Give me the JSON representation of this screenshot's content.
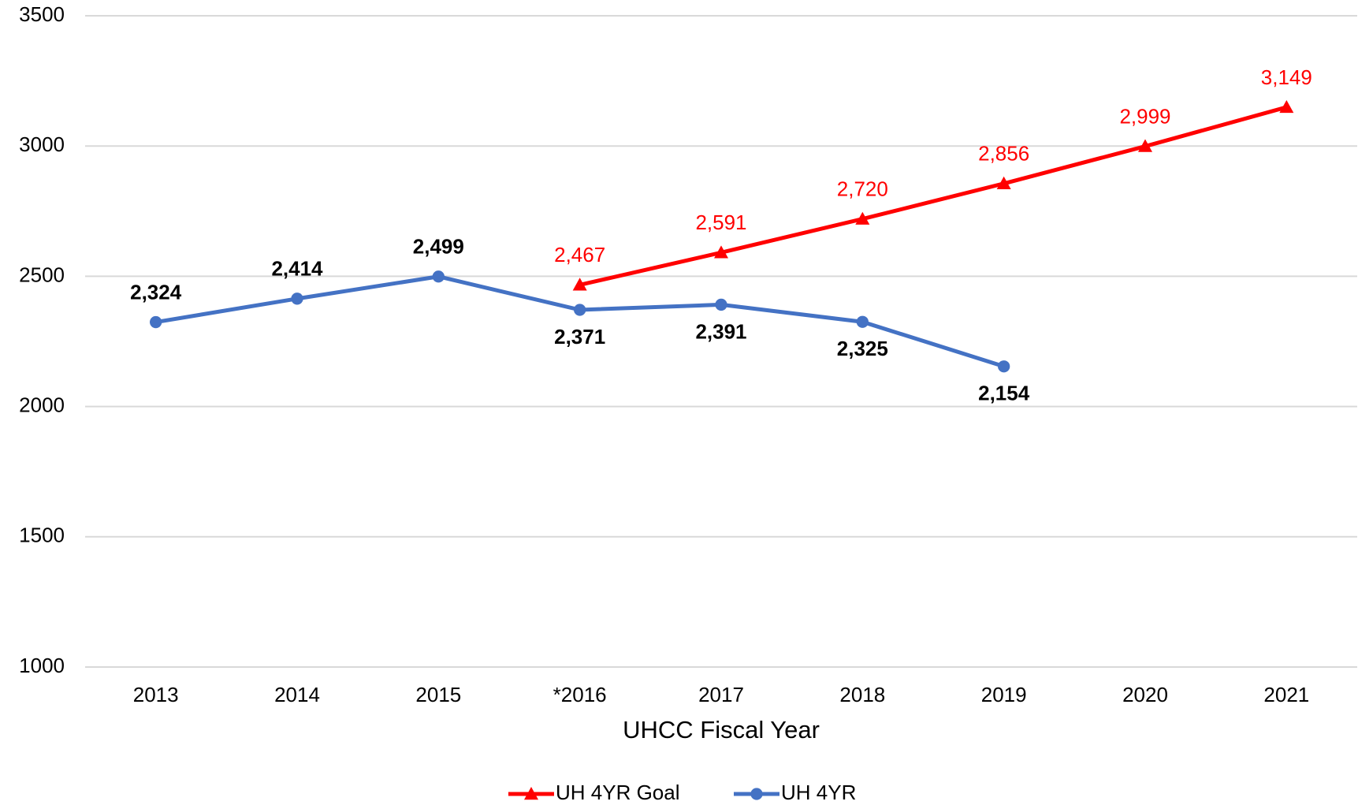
{
  "chart_data": {
    "type": "line",
    "x_label": "UHCC Fiscal Year",
    "categories": [
      "2013",
      "2014",
      "2015",
      "*2016",
      "2017",
      "2018",
      "2019",
      "2020",
      "2021"
    ],
    "series": [
      {
        "name": "UH 4YR Goal",
        "color": "#ff0000",
        "marker": "triangle",
        "values": [
          null,
          null,
          null,
          2467,
          2591,
          2720,
          2856,
          2999,
          3149
        ],
        "value_labels": [
          null,
          null,
          null,
          "2,467",
          "2,591",
          "2,720",
          "2,856",
          "2,999",
          "3,149"
        ]
      },
      {
        "name": "UH 4YR",
        "color": "#4472c4",
        "marker": "circle",
        "values": [
          2324,
          2414,
          2499,
          2371,
          2391,
          2325,
          2154,
          null,
          null
        ],
        "value_labels": [
          "2,324",
          "2,414",
          "2,499",
          "2,371",
          "2,391",
          "2,325",
          "2,154",
          null,
          null
        ]
      }
    ],
    "ylim": [
      1000,
      3500
    ],
    "yticks": [
      1000,
      1500,
      2000,
      2500,
      3000,
      3500
    ],
    "grid": true,
    "legend": "bottom"
  }
}
